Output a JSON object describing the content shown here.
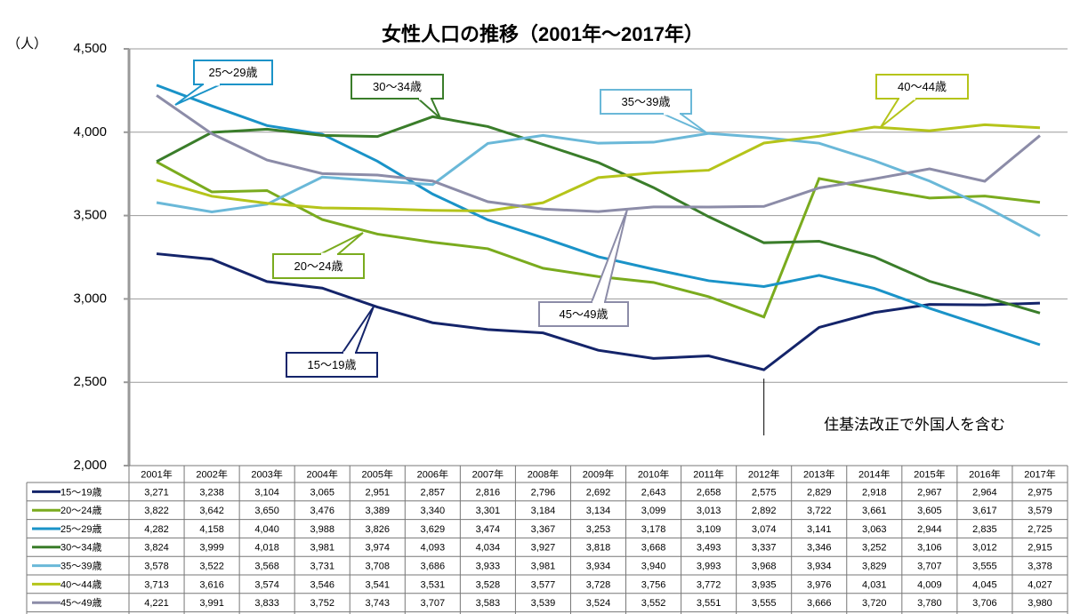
{
  "chart_data": {
    "type": "line",
    "title": "女性人口の推移（2001年～2017年）",
    "y_label": "（人）",
    "annotation": "住基法改正で外国人を含む",
    "categories": [
      "2001年",
      "2002年",
      "2003年",
      "2004年",
      "2005年",
      "2006年",
      "2007年",
      "2008年",
      "2009年",
      "2010年",
      "2011年",
      "2012年",
      "2013年",
      "2014年",
      "2015年",
      "2016年",
      "2017年"
    ],
    "ylim": [
      2000,
      4500
    ],
    "yticks": [
      {
        "value": 2000,
        "label": "2,000"
      },
      {
        "value": 2500,
        "label": "2,500"
      },
      {
        "value": 3000,
        "label": "3,000"
      },
      {
        "value": 3500,
        "label": "3,500"
      },
      {
        "value": 4000,
        "label": "4,000"
      },
      {
        "value": 4500,
        "label": "4,500"
      }
    ],
    "grid": true,
    "series": [
      {
        "name": "15～19歳",
        "color": "#14246a",
        "values": [
          3271,
          3238,
          3104,
          3065,
          2951,
          2857,
          2816,
          2796,
          2692,
          2643,
          2658,
          2575,
          2829,
          2918,
          2967,
          2964,
          2975
        ],
        "value_labels": [
          "3,271",
          "3,238",
          "3,104",
          "3,065",
          "2,951",
          "2,857",
          "2,816",
          "2,796",
          "2,692",
          "2,643",
          "2,658",
          "2,575",
          "2,829",
          "2,918",
          "2,967",
          "2,964",
          "2,975"
        ]
      },
      {
        "name": "20～24歳",
        "color": "#7aab1e",
        "values": [
          3822,
          3642,
          3650,
          3476,
          3389,
          3340,
          3301,
          3184,
          3134,
          3099,
          3013,
          2892,
          3722,
          3661,
          3605,
          3617,
          3579
        ],
        "value_labels": [
          "3,822",
          "3,642",
          "3,650",
          "3,476",
          "3,389",
          "3,340",
          "3,301",
          "3,184",
          "3,134",
          "3,099",
          "3,013",
          "2,892",
          "3,722",
          "3,661",
          "3,605",
          "3,617",
          "3,579"
        ]
      },
      {
        "name": "25～29歳",
        "color": "#1a93c8",
        "values": [
          4282,
          4158,
          4040,
          3988,
          3826,
          3629,
          3474,
          3367,
          3253,
          3178,
          3109,
          3074,
          3141,
          3063,
          2944,
          2835,
          2725
        ],
        "value_labels": [
          "4,282",
          "4,158",
          "4,040",
          "3,988",
          "3,826",
          "3,629",
          "3,474",
          "3,367",
          "3,253",
          "3,178",
          "3,109",
          "3,074",
          "3,141",
          "3,063",
          "2,944",
          "2,835",
          "2,725"
        ]
      },
      {
        "name": "30～34歳",
        "color": "#3a7d2a",
        "values": [
          3824,
          3999,
          4018,
          3981,
          3974,
          4093,
          4034,
          3927,
          3818,
          3668,
          3493,
          3337,
          3346,
          3252,
          3106,
          3012,
          2915
        ],
        "value_labels": [
          "3,824",
          "3,999",
          "4,018",
          "3,981",
          "3,974",
          "4,093",
          "4,034",
          "3,927",
          "3,818",
          "3,668",
          "3,493",
          "3,337",
          "3,346",
          "3,252",
          "3,106",
          "3,012",
          "2,915"
        ]
      },
      {
        "name": "35～39歳",
        "color": "#6ab8d8",
        "values": [
          3578,
          3522,
          3568,
          3731,
          3708,
          3686,
          3933,
          3981,
          3934,
          3940,
          3993,
          3968,
          3934,
          3829,
          3707,
          3555,
          3378
        ],
        "value_labels": [
          "3,578",
          "3,522",
          "3,568",
          "3,731",
          "3,708",
          "3,686",
          "3,933",
          "3,981",
          "3,934",
          "3,940",
          "3,993",
          "3,968",
          "3,934",
          "3,829",
          "3,707",
          "3,555",
          "3,378"
        ]
      },
      {
        "name": "40～44歳",
        "color": "#b5c41a",
        "values": [
          3713,
          3616,
          3574,
          3546,
          3541,
          3531,
          3528,
          3577,
          3728,
          3756,
          3772,
          3935,
          3976,
          4031,
          4009,
          4045,
          4027
        ],
        "value_labels": [
          "3,713",
          "3,616",
          "3,574",
          "3,546",
          "3,541",
          "3,531",
          "3,528",
          "3,577",
          "3,728",
          "3,756",
          "3,772",
          "3,935",
          "3,976",
          "4,031",
          "4,009",
          "4,045",
          "4,027"
        ]
      },
      {
        "name": "45～49歳",
        "color": "#8c8ca8",
        "values": [
          4221,
          3991,
          3833,
          3752,
          3743,
          3707,
          3583,
          3539,
          3524,
          3552,
          3551,
          3555,
          3666,
          3720,
          3780,
          3706,
          3980
        ],
        "value_labels": [
          "4,221",
          "3,991",
          "3,833",
          "3,752",
          "3,743",
          "3,707",
          "3,583",
          "3,539",
          "3,524",
          "3,552",
          "3,551",
          "3,555",
          "3,666",
          "3,720",
          "3,780",
          "3,706",
          "3,980"
        ]
      }
    ]
  }
}
